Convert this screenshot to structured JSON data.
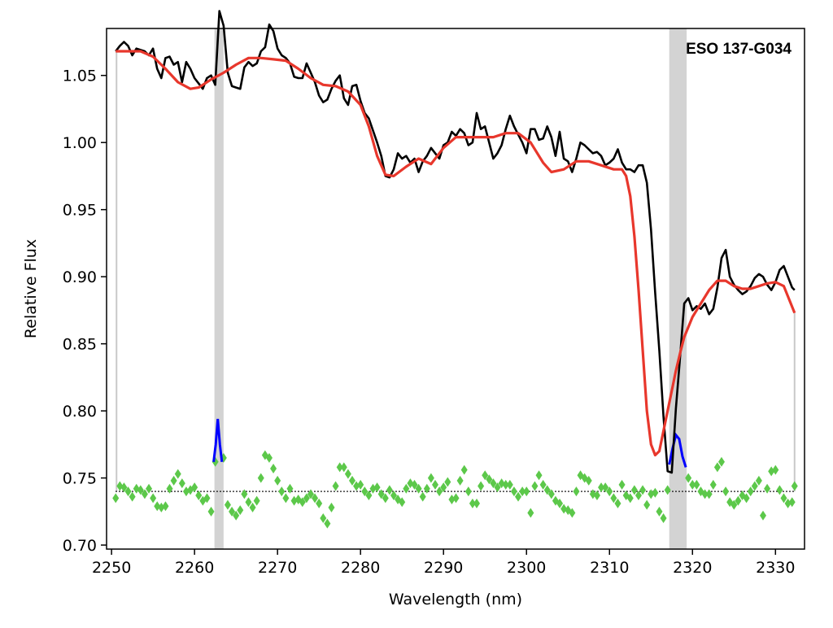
{
  "chart_data": {
    "type": "line",
    "title": "",
    "xlabel": "Wavelength (nm)",
    "ylabel": "Relative Flux",
    "xlim": [
      2249.4,
      2333.5
    ],
    "ylim": [
      0.697,
      1.085
    ],
    "xticks": [
      2250,
      2260,
      2270,
      2280,
      2290,
      2300,
      2310,
      2320,
      2330
    ],
    "yticks": [
      0.7,
      0.75,
      0.8,
      0.85,
      0.9,
      0.95,
      1.0,
      1.05
    ],
    "ytick_labels": [
      "0.70",
      "0.75",
      "0.80",
      "0.85",
      "0.90",
      "0.95",
      "1.00",
      "1.05"
    ],
    "grid": false,
    "legend": "none",
    "annotation": "ESO 137-G034",
    "masked_regions": [
      [
        2262.4,
        2263.5
      ],
      [
        2317.2,
        2319.3
      ]
    ],
    "masked_color": "#d3d3d3",
    "fit_range_lines": {
      "x": [
        2250.6,
        2332.3
      ],
      "ymin": 0.74,
      "color": "#c8c8c8"
    },
    "zero_line": {
      "y": 0.74,
      "color": "#000000"
    },
    "series": [
      {
        "role": "data",
        "color": "#000000",
        "x": [
          2250.5,
          2251.0,
          2251.5,
          2252.0,
          2252.5,
          2253.0,
          2253.5,
          2254.0,
          2254.5,
          2255.0,
          2255.5,
          2256.0,
          2256.5,
          2257.0,
          2257.5,
          2258.0,
          2258.5,
          2259.0,
          2259.5,
          2260.0,
          2260.5,
          2261.0,
          2261.5,
          2262.0,
          2262.5,
          2263.0,
          2263.5,
          2264.0,
          2264.5,
          2265.0,
          2265.5,
          2266.0,
          2266.5,
          2267.0,
          2267.5,
          2268.0,
          2268.5,
          2269.0,
          2269.5,
          2270.0,
          2270.5,
          2271.0,
          2271.5,
          2272.0,
          2272.5,
          2273.0,
          2273.5,
          2274.0,
          2274.5,
          2275.0,
          2275.5,
          2276.0,
          2276.5,
          2277.0,
          2277.5,
          2278.0,
          2278.5,
          2279.0,
          2279.5,
          2280.0,
          2280.5,
          2281.0,
          2281.5,
          2282.0,
          2282.5,
          2283.0,
          2283.5,
          2284.0,
          2284.5,
          2285.0,
          2285.5,
          2286.0,
          2286.5,
          2287.0,
          2287.5,
          2288.0,
          2288.5,
          2289.0,
          2289.5,
          2290.0,
          2290.5,
          2291.0,
          2291.5,
          2292.0,
          2292.5,
          2293.0,
          2293.5,
          2294.0,
          2294.5,
          2295.0,
          2295.5,
          2296.0,
          2296.5,
          2297.0,
          2297.5,
          2298.0,
          2298.5,
          2299.0,
          2299.5,
          2300.0,
          2300.5,
          2301.0,
          2301.5,
          2302.0,
          2302.5,
          2303.0,
          2303.5,
          2304.0,
          2304.5,
          2305.0,
          2305.5,
          2306.0,
          2306.5,
          2307.0,
          2307.5,
          2308.0,
          2308.5,
          2309.0,
          2309.5,
          2310.0,
          2310.5,
          2311.0,
          2311.5,
          2312.0,
          2312.5,
          2313.0,
          2313.5,
          2314.0,
          2314.5,
          2315.0,
          2315.5,
          2316.0,
          2316.5,
          2317.0,
          2317.5,
          2318.0,
          2318.5,
          2319.0,
          2319.5,
          2320.0,
          2320.5,
          2321.0,
          2321.5,
          2322.0,
          2322.5,
          2323.0,
          2323.5,
          2324.0,
          2324.5,
          2325.0,
          2325.5,
          2326.0,
          2326.5,
          2327.0,
          2327.5,
          2328.0,
          2328.5,
          2329.0,
          2329.5,
          2330.0,
          2330.5,
          2331.0,
          2331.5,
          2332.0,
          2332.3
        ],
        "y": [
          1.068,
          1.072,
          1.075,
          1.072,
          1.065,
          1.07,
          1.069,
          1.068,
          1.065,
          1.07,
          1.055,
          1.048,
          1.063,
          1.064,
          1.058,
          1.06,
          1.045,
          1.06,
          1.055,
          1.048,
          1.044,
          1.04,
          1.048,
          1.05,
          1.043,
          1.098,
          1.087,
          1.052,
          1.042,
          1.041,
          1.04,
          1.056,
          1.06,
          1.057,
          1.059,
          1.068,
          1.071,
          1.088,
          1.083,
          1.07,
          1.065,
          1.063,
          1.059,
          1.049,
          1.048,
          1.048,
          1.059,
          1.052,
          1.045,
          1.035,
          1.03,
          1.032,
          1.04,
          1.046,
          1.05,
          1.033,
          1.028,
          1.042,
          1.043,
          1.031,
          1.022,
          1.018,
          1.009,
          1.0,
          0.99,
          0.975,
          0.974,
          0.98,
          0.992,
          0.988,
          0.99,
          0.985,
          0.988,
          0.978,
          0.986,
          0.99,
          0.996,
          0.992,
          0.988,
          0.998,
          1.0,
          1.008,
          1.005,
          1.01,
          1.007,
          0.998,
          1.0,
          1.022,
          1.01,
          1.012,
          1.0,
          0.988,
          0.992,
          0.998,
          1.01,
          1.02,
          1.012,
          1.006,
          1.0,
          0.992,
          1.01,
          1.01,
          1.002,
          1.003,
          1.012,
          1.004,
          0.99,
          1.008,
          0.988,
          0.986,
          0.978,
          0.988,
          1.0,
          0.998,
          0.995,
          0.992,
          0.993,
          0.99,
          0.983,
          0.985,
          0.988,
          0.995,
          0.985,
          0.98,
          0.98,
          0.978,
          0.983,
          0.983,
          0.97,
          0.935,
          0.888,
          0.845,
          0.796,
          0.755,
          0.754,
          0.802,
          0.84,
          0.88,
          0.884,
          0.875,
          0.878,
          0.876,
          0.88,
          0.872,
          0.876,
          0.892,
          0.914,
          0.92,
          0.9,
          0.894,
          0.89,
          0.887,
          0.889,
          0.893,
          0.899,
          0.902,
          0.9,
          0.894,
          0.89,
          0.896,
          0.905,
          0.908,
          0.9,
          0.892,
          0.89
        ],
        "name": ""
      },
      {
        "role": "model",
        "color": "#e8372c",
        "x": [
          2250.5,
          2252.0,
          2253.5,
          2255.0,
          2256.5,
          2258.0,
          2259.5,
          2260.5,
          2262.0,
          2263.5,
          2265.0,
          2266.5,
          2268.0,
          2269.5,
          2271.0,
          2272.5,
          2274.0,
          2275.5,
          2277.0,
          2278.5,
          2280.0,
          2281.0,
          2282.0,
          2283.0,
          2284.0,
          2285.5,
          2287.0,
          2288.5,
          2290.0,
          2291.5,
          2293.0,
          2294.5,
          2296.0,
          2297.5,
          2299.0,
          2300.5,
          2302.0,
          2303.0,
          2304.5,
          2306.0,
          2307.5,
          2309.0,
          2310.5,
          2311.5,
          2312.0,
          2312.5,
          2313.0,
          2313.5,
          2314.0,
          2314.5,
          2315.0,
          2315.5,
          2316.0,
          2316.5,
          2317.0,
          2317.5,
          2318.0,
          2318.5,
          2319.0,
          2320.0,
          2321.0,
          2322.0,
          2323.0,
          2324.0,
          2325.0,
          2326.0,
          2327.0,
          2328.0,
          2329.0,
          2330.0,
          2331.0,
          2332.3
        ],
        "y": [
          1.068,
          1.068,
          1.068,
          1.064,
          1.055,
          1.045,
          1.04,
          1.041,
          1.047,
          1.052,
          1.058,
          1.063,
          1.063,
          1.062,
          1.061,
          1.055,
          1.048,
          1.043,
          1.042,
          1.038,
          1.028,
          1.012,
          0.99,
          0.976,
          0.975,
          0.982,
          0.988,
          0.984,
          0.996,
          1.004,
          1.004,
          1.004,
          1.004,
          1.007,
          1.007,
          1.0,
          0.985,
          0.978,
          0.98,
          0.986,
          0.986,
          0.983,
          0.98,
          0.98,
          0.975,
          0.96,
          0.93,
          0.89,
          0.845,
          0.8,
          0.775,
          0.767,
          0.77,
          0.785,
          0.8,
          0.815,
          0.83,
          0.843,
          0.855,
          0.87,
          0.88,
          0.89,
          0.897,
          0.897,
          0.893,
          0.891,
          0.891,
          0.893,
          0.895,
          0.896,
          0.893,
          0.873
        ],
        "name": ""
      },
      {
        "role": "residuals",
        "color": "#5cc84a",
        "marker": "diamond",
        "x": [
          2250.5,
          2251.0,
          2251.5,
          2252.0,
          2252.5,
          2253.0,
          2253.5,
          2254.0,
          2254.5,
          2255.0,
          2255.5,
          2256.0,
          2256.5,
          2257.0,
          2257.5,
          2258.0,
          2258.5,
          2259.0,
          2259.5,
          2260.0,
          2260.5,
          2261.0,
          2261.5,
          2262.0,
          2262.5,
          2263.5,
          2264.0,
          2264.5,
          2265.0,
          2265.5,
          2266.0,
          2266.5,
          2267.0,
          2267.5,
          2268.0,
          2268.5,
          2269.0,
          2269.5,
          2270.0,
          2270.5,
          2271.0,
          2271.5,
          2272.0,
          2272.5,
          2273.0,
          2273.5,
          2274.0,
          2274.5,
          2275.0,
          2275.5,
          2276.0,
          2276.5,
          2277.0,
          2277.5,
          2278.0,
          2278.5,
          2279.0,
          2279.5,
          2280.0,
          2280.5,
          2281.0,
          2281.5,
          2282.0,
          2282.5,
          2283.0,
          2283.5,
          2284.0,
          2284.5,
          2285.0,
          2285.5,
          2286.0,
          2286.5,
          2287.0,
          2287.5,
          2288.0,
          2288.5,
          2289.0,
          2289.5,
          2290.0,
          2290.5,
          2291.0,
          2291.5,
          2292.0,
          2292.5,
          2293.0,
          2293.5,
          2294.0,
          2294.5,
          2295.0,
          2295.5,
          2296.0,
          2296.5,
          2297.0,
          2297.5,
          2298.0,
          2298.5,
          2299.0,
          2299.5,
          2300.0,
          2300.5,
          2301.0,
          2301.5,
          2302.0,
          2302.5,
          2303.0,
          2303.5,
          2304.0,
          2304.5,
          2305.0,
          2305.5,
          2306.0,
          2306.5,
          2307.0,
          2307.5,
          2308.0,
          2308.5,
          2309.0,
          2309.5,
          2310.0,
          2310.5,
          2311.0,
          2311.5,
          2312.0,
          2312.5,
          2313.0,
          2313.5,
          2314.0,
          2314.5,
          2315.0,
          2315.5,
          2316.0,
          2316.5,
          2317.0,
          2319.5,
          2320.0,
          2320.5,
          2321.0,
          2321.5,
          2322.0,
          2322.5,
          2323.0,
          2323.5,
          2324.0,
          2324.5,
          2325.0,
          2325.5,
          2326.0,
          2326.5,
          2327.0,
          2327.5,
          2328.0,
          2328.5,
          2329.0,
          2329.5,
          2330.0,
          2330.5,
          2331.0,
          2331.5,
          2332.0,
          2332.3
        ],
        "y": [
          0.735,
          0.744,
          0.743,
          0.74,
          0.736,
          0.742,
          0.741,
          0.738,
          0.742,
          0.735,
          0.729,
          0.728,
          0.729,
          0.742,
          0.748,
          0.753,
          0.746,
          0.74,
          0.741,
          0.743,
          0.737,
          0.733,
          0.735,
          0.725,
          0.762,
          0.765,
          0.73,
          0.725,
          0.722,
          0.726,
          0.738,
          0.732,
          0.728,
          0.733,
          0.75,
          0.767,
          0.765,
          0.757,
          0.748,
          0.74,
          0.735,
          0.742,
          0.733,
          0.734,
          0.732,
          0.735,
          0.738,
          0.735,
          0.731,
          0.72,
          0.716,
          0.728,
          0.744,
          0.758,
          0.758,
          0.753,
          0.748,
          0.744,
          0.745,
          0.74,
          0.737,
          0.742,
          0.743,
          0.738,
          0.735,
          0.741,
          0.737,
          0.734,
          0.732,
          0.742,
          0.746,
          0.745,
          0.742,
          0.736,
          0.742,
          0.75,
          0.745,
          0.74,
          0.743,
          0.747,
          0.734,
          0.735,
          0.748,
          0.756,
          0.74,
          0.731,
          0.731,
          0.744,
          0.752,
          0.749,
          0.746,
          0.743,
          0.746,
          0.745,
          0.745,
          0.74,
          0.736,
          0.74,
          0.74,
          0.724,
          0.744,
          0.752,
          0.745,
          0.741,
          0.738,
          0.733,
          0.731,
          0.727,
          0.726,
          0.724,
          0.74,
          0.752,
          0.75,
          0.748,
          0.738,
          0.737,
          0.743,
          0.743,
          0.74,
          0.735,
          0.731,
          0.745,
          0.737,
          0.735,
          0.741,
          0.737,
          0.741,
          0.73,
          0.738,
          0.739,
          0.725,
          0.72,
          0.741,
          0.75,
          0.745,
          0.745,
          0.74,
          0.738,
          0.738,
          0.745,
          0.758,
          0.762,
          0.74,
          0.732,
          0.73,
          0.733,
          0.737,
          0.735,
          0.74,
          0.744,
          0.748,
          0.722,
          0.742,
          0.755,
          0.756,
          0.741,
          0.735,
          0.731,
          0.732,
          0.744
        ],
        "name": ""
      },
      {
        "role": "masked-residuals",
        "color": "#0000ff",
        "segments": [
          {
            "x": [
              2262.3,
              2262.55,
              2262.8,
              2263.05,
              2263.3
            ],
            "y": [
              0.762,
              0.775,
              0.794,
              0.775,
              0.762
            ]
          },
          {
            "x": [
              2317.2,
              2317.6,
              2318.0,
              2318.4,
              2318.8,
              2319.2
            ],
            "y": [
              0.76,
              0.772,
              0.782,
              0.779,
              0.766,
              0.758
            ]
          }
        ],
        "name": ""
      }
    ]
  }
}
